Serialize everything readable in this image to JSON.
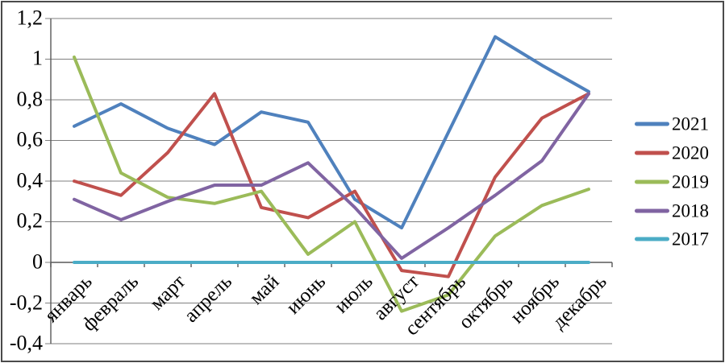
{
  "chart_data": {
    "type": "line",
    "title": "",
    "xlabel": "",
    "ylabel": "",
    "categories": [
      "январь",
      "февраль",
      "март",
      "апрель",
      "май",
      "июнь",
      "июль",
      "август",
      "сентябрь",
      "октябрь",
      "ноябрь",
      "декабрь"
    ],
    "series": [
      {
        "name": "2021",
        "color": "#4F81BD",
        "values": [
          0.67,
          0.78,
          0.66,
          0.58,
          0.74,
          0.69,
          0.31,
          0.17,
          0.64,
          1.11,
          0.97,
          0.84
        ]
      },
      {
        "name": "2020",
        "color": "#C0504D",
        "values": [
          0.4,
          0.33,
          0.54,
          0.83,
          0.27,
          0.22,
          0.35,
          -0.04,
          -0.07,
          0.42,
          0.71,
          0.83
        ]
      },
      {
        "name": "2019",
        "color": "#9BBB59",
        "values": [
          1.01,
          0.44,
          0.32,
          0.29,
          0.35,
          0.04,
          0.2,
          -0.24,
          -0.16,
          0.13,
          0.28,
          0.36
        ]
      },
      {
        "name": "2018",
        "color": "#8064A2",
        "values": [
          0.31,
          0.21,
          0.3,
          0.38,
          0.38,
          0.49,
          0.27,
          0.02,
          0.17,
          0.33,
          0.5,
          0.83
        ]
      },
      {
        "name": "2017",
        "color": "#4BACC6",
        "values": [
          0.0,
          0.0,
          0.0,
          0.0,
          0.0,
          0.0,
          0.0,
          0.0,
          0.0,
          0.0,
          0.0,
          0.0
        ]
      }
    ],
    "y_ticks": [
      "1,2",
      "1",
      "0,8",
      "0,6",
      "0,4",
      "0,2",
      "0",
      "-0,2",
      "-0,4"
    ],
    "y_tick_values": [
      1.2,
      1.0,
      0.8,
      0.6,
      0.4,
      0.2,
      0.0,
      -0.2,
      -0.4
    ],
    "ylim": [
      -0.4,
      1.2
    ],
    "grid": true,
    "legend_position": "right",
    "gridline_color": "#7F7F7F",
    "axis_color": "#595959",
    "decimal_separator": ","
  }
}
